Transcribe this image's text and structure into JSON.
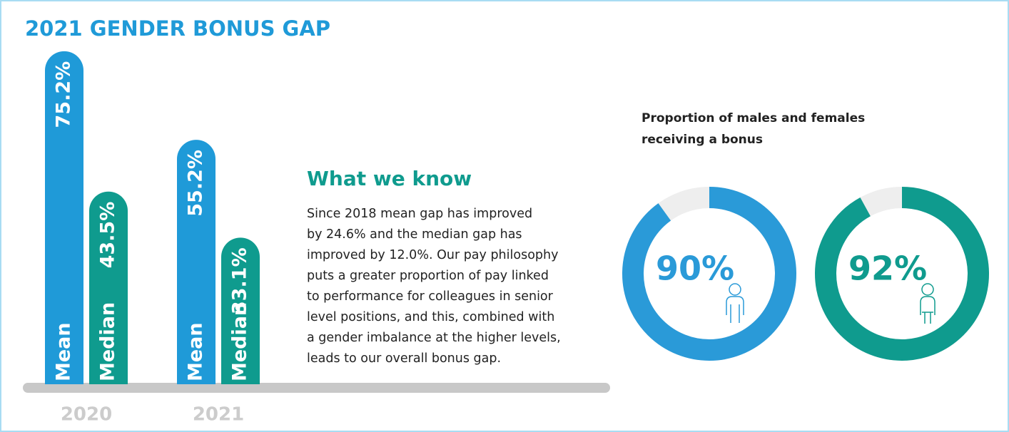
{
  "title": "2021 GENDER BONUS GAP",
  "know": {
    "heading": "What we know",
    "lines": [
      "Since 2018 mean gap has improved",
      "by 24.6% and the median gap has",
      "improved by 12.0%. Our pay philosophy",
      "puts a greater proportion of pay linked",
      "to performance for colleagues in senior",
      "level positions, and this, combined with",
      "a gender imbalance at the higher levels,",
      "leads to our overall bonus gap."
    ]
  },
  "donut_title": [
    "Proportion of males and females",
    "receiving a bonus"
  ],
  "chart_data": [
    {
      "type": "bar",
      "categories": [
        "2020",
        "2021"
      ],
      "ylim": [
        0,
        80
      ],
      "series": [
        {
          "name": "Mean",
          "color": "#1f9ad8",
          "values": [
            75.2,
            55.2
          ],
          "value_labels": [
            "75.2%",
            "55.2%"
          ]
        },
        {
          "name": "Median",
          "color": "#0f9b8e",
          "values": [
            43.5,
            33.1
          ],
          "value_labels": [
            "43.5%",
            "33.1%"
          ]
        }
      ]
    },
    {
      "type": "donut",
      "values": [
        90
      ],
      "value_labels": [
        "90%"
      ],
      "color": "#2a9ad8"
    },
    {
      "type": "donut",
      "values": [
        92
      ],
      "value_labels": [
        "92%"
      ],
      "color": "#0f9b8e"
    }
  ]
}
